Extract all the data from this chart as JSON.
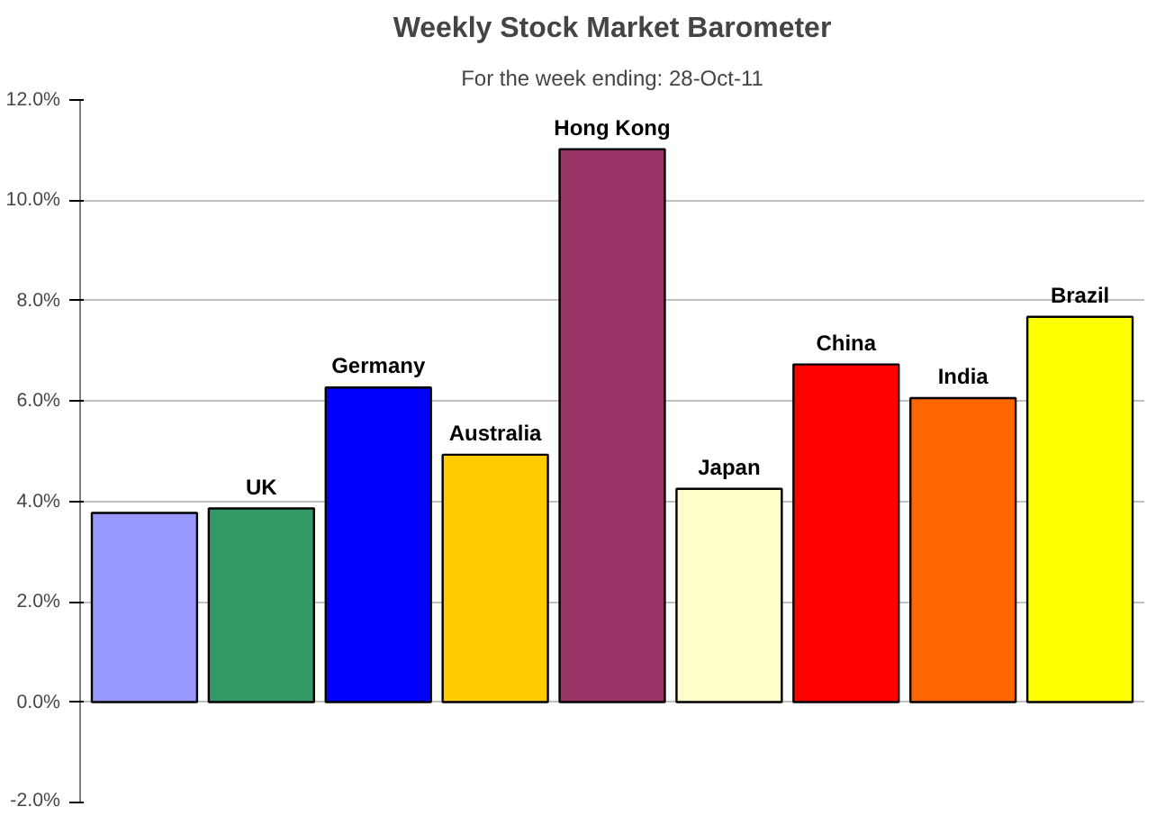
{
  "chart_data": {
    "type": "bar",
    "title": "Weekly Stock Market Barometer",
    "subtitle": "For the week ending: 28-Oct-11",
    "categories": [
      null,
      "UK",
      "Germany",
      "Australia",
      "Hong Kong",
      "Japan",
      "China",
      "India",
      "Brazil"
    ],
    "values": [
      3.77,
      3.86,
      6.27,
      4.93,
      11.02,
      4.25,
      6.73,
      6.06,
      7.68
    ],
    "colors": [
      "#9999ff",
      "#339966",
      "#0000ff",
      "#ffcc00",
      "#993366",
      "#ffffcc",
      "#ff0000",
      "#ff6600",
      "#ffff00"
    ],
    "ylim": [
      -2,
      12
    ],
    "yticks": [
      {
        "value": -2,
        "label": "-2.0%"
      },
      {
        "value": 0,
        "label": "0.0%"
      },
      {
        "value": 2,
        "label": "2.0%"
      },
      {
        "value": 4,
        "label": "4.0%"
      },
      {
        "value": 6,
        "label": "6.0%"
      },
      {
        "value": 8,
        "label": "8.0%"
      },
      {
        "value": 10,
        "label": "10.0%"
      },
      {
        "value": 12,
        "label": "12.0%"
      }
    ],
    "grid": "y"
  }
}
